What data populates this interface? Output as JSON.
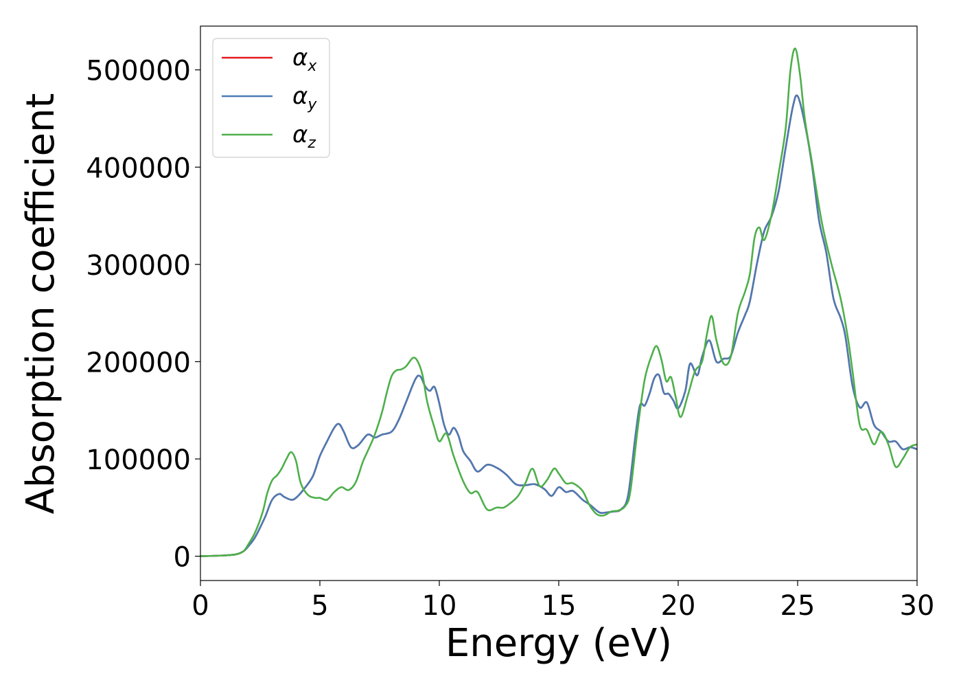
{
  "chart_data": {
    "type": "line",
    "title": "",
    "xlabel": "Energy (eV)",
    "ylabel": "Absorption coefficient",
    "xlim": [
      0,
      30
    ],
    "ylim": [
      -25000,
      545000
    ],
    "xticks": [
      0,
      5,
      10,
      15,
      20,
      25,
      30
    ],
    "yticks": [
      0,
      100000,
      200000,
      300000,
      400000,
      500000
    ],
    "grid": false,
    "legend_position": "top-left",
    "series": [
      {
        "name": "α_x",
        "legend_symbol": "α",
        "legend_sub": "x",
        "color": "#e41a1c",
        "x": [
          0,
          1,
          1.5,
          1.8,
          2,
          2.3,
          2.7,
          3,
          3.3,
          3.5,
          3.8,
          4,
          4.3,
          4.7,
          5,
          5.3,
          5.6,
          5.8,
          6,
          6.3,
          6.6,
          7,
          7.3,
          7.6,
          8,
          8.3,
          8.6,
          9,
          9.2,
          9.4,
          9.6,
          9.8,
          10,
          10.2,
          10.4,
          10.6,
          10.8,
          11,
          11.3,
          11.6,
          12,
          12.4,
          12.8,
          13.2,
          13.6,
          14,
          14.4,
          14.7,
          15,
          15.3,
          15.6,
          16,
          16.3,
          16.7,
          17,
          17.3,
          17.6,
          17.9,
          18.2,
          18.4,
          18.6,
          18.8,
          19,
          19.2,
          19.4,
          19.6,
          19.8,
          20,
          20.3,
          20.5,
          20.8,
          21,
          21.3,
          21.6,
          21.9,
          22.2,
          22.5,
          22.8,
          23,
          23.3,
          23.6,
          23.9,
          24.2,
          24.5,
          24.8,
          25,
          25.3,
          25.6,
          25.9,
          26.2,
          26.5,
          26.8,
          27,
          27.3,
          27.6,
          27.9,
          28.2,
          28.5,
          28.8,
          29.1,
          29.4,
          29.7,
          30
        ],
        "y": [
          0,
          800,
          2000,
          5000,
          10000,
          20000,
          40000,
          58000,
          64000,
          61000,
          58000,
          60000,
          68000,
          82000,
          103000,
          118000,
          132000,
          136000,
          128000,
          112000,
          114000,
          125000,
          122000,
          125000,
          128000,
          140000,
          158000,
          182000,
          185000,
          175000,
          170000,
          174000,
          157000,
          135000,
          125000,
          132000,
          124000,
          108000,
          98000,
          87000,
          94000,
          91000,
          84000,
          74000,
          73000,
          74000,
          69000,
          62000,
          71000,
          66000,
          67000,
          58000,
          53000,
          45000,
          45000,
          46000,
          48000,
          62000,
          122000,
          155000,
          155000,
          167000,
          183000,
          186000,
          168000,
          167000,
          160000,
          152000,
          170000,
          198000,
          186000,
          205000,
          222000,
          200000,
          203000,
          206000,
          230000,
          248000,
          262000,
          301000,
          334000,
          349000,
          375000,
          420000,
          462000,
          473000,
          445000,
          402000,
          345000,
          312000,
          265000,
          245000,
          226000,
          175000,
          153000,
          158000,
          135000,
          128000,
          118000,
          118000,
          110000,
          112000,
          110000
        ]
      },
      {
        "name": "α_y",
        "legend_symbol": "α",
        "legend_sub": "y",
        "color": "#4a7bb4",
        "x": [
          0,
          1,
          1.5,
          1.8,
          2,
          2.3,
          2.7,
          3,
          3.3,
          3.5,
          3.8,
          4,
          4.3,
          4.7,
          5,
          5.3,
          5.6,
          5.8,
          6,
          6.3,
          6.6,
          7,
          7.3,
          7.6,
          8,
          8.3,
          8.6,
          9,
          9.2,
          9.4,
          9.6,
          9.8,
          10,
          10.2,
          10.4,
          10.6,
          10.8,
          11,
          11.3,
          11.6,
          12,
          12.4,
          12.8,
          13.2,
          13.6,
          14,
          14.4,
          14.7,
          15,
          15.3,
          15.6,
          16,
          16.3,
          16.7,
          17,
          17.3,
          17.6,
          17.9,
          18.2,
          18.4,
          18.6,
          18.8,
          19,
          19.2,
          19.4,
          19.6,
          19.8,
          20,
          20.3,
          20.5,
          20.8,
          21,
          21.3,
          21.6,
          21.9,
          22.2,
          22.5,
          22.8,
          23,
          23.3,
          23.6,
          23.9,
          24.2,
          24.5,
          24.8,
          25,
          25.3,
          25.6,
          25.9,
          26.2,
          26.5,
          26.8,
          27,
          27.3,
          27.6,
          27.9,
          28.2,
          28.5,
          28.8,
          29.1,
          29.4,
          29.7,
          30
        ],
        "y": [
          0,
          800,
          2000,
          5000,
          10000,
          20000,
          40000,
          58000,
          64000,
          61000,
          58000,
          60000,
          68000,
          82000,
          103000,
          118000,
          132000,
          136000,
          128000,
          112000,
          114000,
          125000,
          122000,
          125000,
          128000,
          140000,
          158000,
          182000,
          185000,
          175000,
          170000,
          174000,
          157000,
          135000,
          125000,
          132000,
          124000,
          108000,
          98000,
          87000,
          94000,
          91000,
          84000,
          74000,
          73000,
          74000,
          69000,
          62000,
          71000,
          66000,
          67000,
          58000,
          53000,
          45000,
          45000,
          46000,
          48000,
          62000,
          122000,
          155000,
          155000,
          167000,
          183000,
          186000,
          168000,
          167000,
          160000,
          152000,
          170000,
          198000,
          186000,
          205000,
          222000,
          200000,
          203000,
          206000,
          230000,
          248000,
          262000,
          301000,
          334000,
          349000,
          375000,
          420000,
          462000,
          473000,
          445000,
          402000,
          345000,
          312000,
          265000,
          245000,
          226000,
          175000,
          153000,
          158000,
          135000,
          128000,
          118000,
          118000,
          110000,
          112000,
          110000
        ]
      },
      {
        "name": "α_z",
        "legend_symbol": "α",
        "legend_sub": "z",
        "color": "#4daf4a",
        "x": [
          0,
          1,
          1.5,
          1.8,
          2,
          2.3,
          2.6,
          2.8,
          3,
          3.2,
          3.4,
          3.6,
          3.8,
          4,
          4.2,
          4.5,
          4.8,
          5,
          5.3,
          5.6,
          5.9,
          6.2,
          6.5,
          6.8,
          7,
          7.3,
          7.6,
          7.8,
          8,
          8.2,
          8.4,
          8.6,
          8.9,
          9.1,
          9.3,
          9.5,
          9.8,
          10,
          10.3,
          10.6,
          11,
          11.3,
          11.6,
          12,
          12.4,
          12.7,
          13,
          13.3,
          13.6,
          13.9,
          14.2,
          14.5,
          14.8,
          15,
          15.3,
          15.6,
          16,
          16.3,
          16.6,
          16.9,
          17.2,
          17.5,
          17.8,
          18,
          18.3,
          18.6,
          18.9,
          19.1,
          19.3,
          19.5,
          19.7,
          19.9,
          20.1,
          20.4,
          20.7,
          21,
          21.2,
          21.4,
          21.6,
          21.9,
          22.2,
          22.5,
          22.8,
          23,
          23.2,
          23.4,
          23.6,
          23.9,
          24.2,
          24.5,
          24.7,
          24.9,
          25.1,
          25.3,
          25.6,
          26,
          26.4,
          26.8,
          27.1,
          27.3,
          27.6,
          27.9,
          28.2,
          28.5,
          28.8,
          29.1,
          29.4,
          29.7,
          30
        ],
        "y": [
          0,
          800,
          2000,
          5000,
          12000,
          25000,
          45000,
          65000,
          78000,
          83000,
          90000,
          100000,
          107000,
          98000,
          75000,
          63000,
          60000,
          60000,
          58000,
          66000,
          71000,
          68000,
          76000,
          97000,
          108000,
          125000,
          148000,
          168000,
          185000,
          191000,
          192000,
          195000,
          204000,
          200000,
          186000,
          158000,
          132000,
          118000,
          126000,
          103000,
          77000,
          65000,
          66000,
          48000,
          50000,
          50000,
          55000,
          62000,
          75000,
          90000,
          72000,
          78000,
          90000,
          85000,
          75000,
          75000,
          67000,
          52000,
          43000,
          42000,
          46000,
          47000,
          52000,
          67000,
          130000,
          182000,
          207000,
          216000,
          202000,
          180000,
          184000,
          163000,
          143000,
          165000,
          190000,
          200000,
          228000,
          247000,
          222000,
          198000,
          205000,
          250000,
          272000,
          290000,
          328000,
          338000,
          325000,
          350000,
          393000,
          440000,
          500000,
          522000,
          495000,
          450000,
          405000,
          345000,
          302000,
          265000,
          225000,
          190000,
          135000,
          130000,
          115000,
          128000,
          115000,
          92000,
          100000,
          112000,
          115000
        ]
      }
    ]
  }
}
